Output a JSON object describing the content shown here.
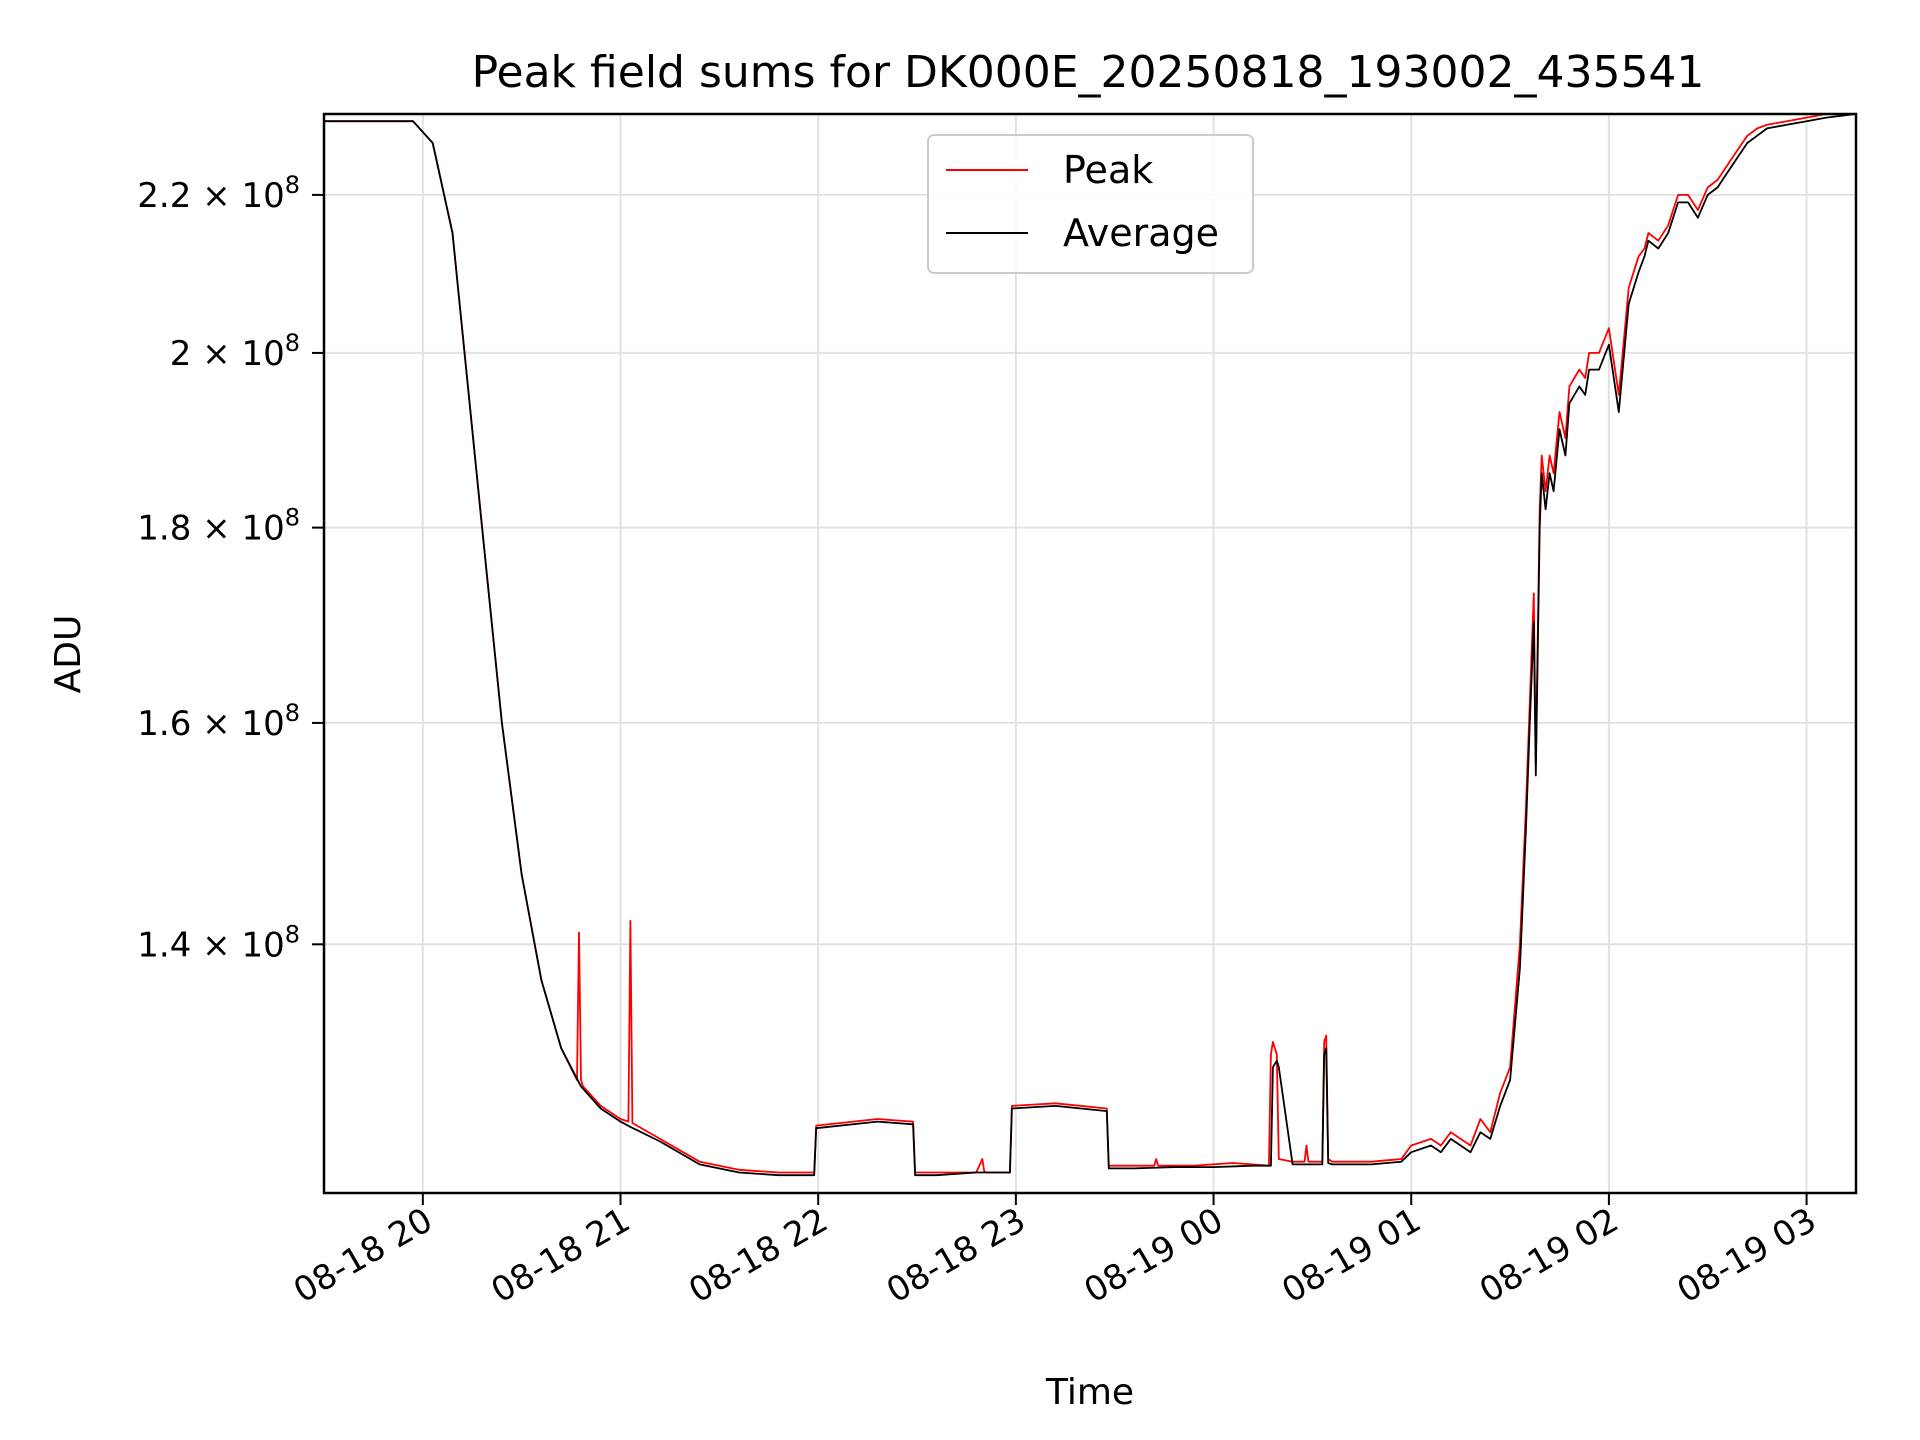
{
  "chart_data": {
    "type": "line",
    "title": "Peak field sums for DK000E_20250818_193002_435541",
    "xlabel": "Time",
    "ylabel": "ADU",
    "x_unit": "hours after 08-18 00:00",
    "xlim": [
      19.5,
      27.25
    ],
    "ylim": [
      120500000.0,
      231000000.0
    ],
    "yscale": "log",
    "grid": true,
    "legend_position": "top-center",
    "x_ticks": [
      {
        "value": 20,
        "label": "08-18 20"
      },
      {
        "value": 21,
        "label": "08-18 21"
      },
      {
        "value": 22,
        "label": "08-18 22"
      },
      {
        "value": 23,
        "label": "08-18 23"
      },
      {
        "value": 24,
        "label": "08-19 00"
      },
      {
        "value": 25,
        "label": "08-19 01"
      },
      {
        "value": 26,
        "label": "08-19 02"
      },
      {
        "value": 27,
        "label": "08-19 03"
      }
    ],
    "y_ticks": [
      {
        "value": 140000000.0,
        "label": "1.4 × 10",
        "exp": "8"
      },
      {
        "value": 160000000.0,
        "label": "1.6 × 10",
        "exp": "8"
      },
      {
        "value": 180000000.0,
        "label": "1.8 × 10",
        "exp": "8"
      },
      {
        "value": 200000000.0,
        "label": "2 × 10",
        "exp": "8"
      },
      {
        "value": 220000000.0,
        "label": "2.2 × 10",
        "exp": "8"
      }
    ],
    "series": [
      {
        "name": "Peak",
        "color": "#ff0000",
        "x": [
          19.5,
          19.8,
          19.95,
          20.05,
          20.15,
          20.3,
          20.4,
          20.5,
          20.6,
          20.7,
          20.78,
          20.79,
          20.8,
          20.81,
          20.9,
          21.0,
          21.04,
          21.05,
          21.06,
          21.2,
          21.4,
          21.6,
          21.8,
          21.98,
          21.99,
          22.3,
          22.48,
          22.49,
          22.6,
          22.8,
          22.83,
          22.84,
          22.85,
          22.97,
          22.98,
          23.2,
          23.46,
          23.47,
          23.6,
          23.7,
          23.71,
          23.72,
          23.9,
          24.1,
          24.28,
          24.29,
          24.3,
          24.32,
          24.33,
          24.4,
          24.46,
          24.47,
          24.48,
          24.55,
          24.56,
          24.57,
          24.58,
          24.6,
          24.8,
          24.95,
          25.0,
          25.1,
          25.15,
          25.2,
          25.3,
          25.35,
          25.4,
          25.45,
          25.5,
          25.55,
          25.58,
          25.6,
          25.62,
          25.63,
          25.65,
          25.66,
          25.68,
          25.7,
          25.72,
          25.75,
          25.78,
          25.8,
          25.85,
          25.88,
          25.9,
          25.95,
          26.0,
          26.05,
          26.1,
          26.15,
          26.18,
          26.2,
          26.25,
          26.3,
          26.35,
          26.4,
          26.45,
          26.5,
          26.55,
          26.6,
          26.65,
          26.7,
          26.75,
          26.8,
          26.9,
          27.0,
          27.1,
          27.25
        ],
        "y": [
          230000000.0,
          230000000.0,
          230000000.0,
          227000000.0,
          215000000.0,
          180000000.0,
          160000000.0,
          146000000.0,
          137000000.0,
          131500000.0,
          129000000.0,
          141000000.0,
          129000000.0,
          128500000.0,
          127000000.0,
          126000000.0,
          125800000.0,
          142000000.0,
          125700000.0,
          124500000.0,
          122800000.0,
          122200000.0,
          122000000.0,
          122000000.0,
          125500000.0,
          126000000.0,
          125800000.0,
          122000000.0,
          122000000.0,
          122000000.0,
          123000000.0,
          122100000.0,
          122000000.0,
          122000000.0,
          127000000.0,
          127200000.0,
          126800000.0,
          122500000.0,
          122500000.0,
          122500000.0,
          123000000.0,
          122500000.0,
          122500000.0,
          122700000.0,
          122500000.0,
          131000000.0,
          132000000.0,
          131000000.0,
          123000000.0,
          122800000.0,
          122800000.0,
          124000000.0,
          122800000.0,
          122800000.0,
          132000000.0,
          132500000.0,
          123000000.0,
          122800000.0,
          122800000.0,
          123000000.0,
          124000000.0,
          124500000.0,
          124000000.0,
          125000000.0,
          124000000.0,
          126000000.0,
          125000000.0,
          128000000.0,
          130000000.0,
          140000000.0,
          152000000.0,
          162000000.0,
          173000000.0,
          156000000.0,
          182000000.0,
          188000000.0,
          184000000.0,
          188000000.0,
          186000000.0,
          193000000.0,
          190000000.0,
          196000000.0,
          198000000.0,
          197000000.0,
          200000000.0,
          200000000.0,
          203000000.0,
          195000000.0,
          208000000.0,
          212000000.0,
          213000000.0,
          215000000.0,
          214000000.0,
          216000000.0,
          220000000.0,
          220000000.0,
          218000000.0,
          221000000.0,
          222000000.0,
          224000000.0,
          226000000.0,
          228000000.0,
          229000000.0,
          229500000.0,
          230000000.0,
          230500000.0,
          231000000.0,
          231000000.0
        ]
      },
      {
        "name": "Average",
        "color": "#000000",
        "x": [
          19.5,
          19.8,
          19.95,
          20.05,
          20.15,
          20.3,
          20.4,
          20.5,
          20.6,
          20.7,
          20.8,
          20.9,
          21.0,
          21.05,
          21.2,
          21.4,
          21.6,
          21.8,
          21.98,
          21.99,
          22.3,
          22.48,
          22.49,
          22.6,
          22.8,
          22.97,
          22.98,
          23.2,
          23.46,
          23.47,
          23.6,
          23.8,
          24.0,
          24.2,
          24.29,
          24.3,
          24.32,
          24.33,
          24.4,
          24.55,
          24.56,
          24.57,
          24.58,
          24.6,
          24.8,
          24.95,
          25.0,
          25.1,
          25.15,
          25.2,
          25.3,
          25.35,
          25.4,
          25.45,
          25.5,
          25.55,
          25.58,
          25.6,
          25.62,
          25.63,
          25.65,
          25.66,
          25.68,
          25.7,
          25.72,
          25.75,
          25.78,
          25.8,
          25.85,
          25.88,
          25.9,
          25.95,
          26.0,
          26.05,
          26.1,
          26.15,
          26.18,
          26.2,
          26.25,
          26.3,
          26.35,
          26.4,
          26.45,
          26.5,
          26.55,
          26.6,
          26.65,
          26.7,
          26.75,
          26.8,
          26.9,
          27.0,
          27.1,
          27.25
        ],
        "y": [
          230000000.0,
          230000000.0,
          230000000.0,
          227000000.0,
          215000000.0,
          180000000.0,
          160000000.0,
          146000000.0,
          137000000.0,
          131500000.0,
          128500000.0,
          126800000.0,
          125800000.0,
          125400000.0,
          124300000.0,
          122600000.0,
          122000000.0,
          121800000.0,
          121800000.0,
          125300000.0,
          125800000.0,
          125600000.0,
          121800000.0,
          121800000.0,
          122000000.0,
          122000000.0,
          126800000.0,
          127000000.0,
          126600000.0,
          122300000.0,
          122300000.0,
          122400000.0,
          122400000.0,
          122500000.0,
          122500000.0,
          130000000.0,
          130500000.0,
          130000000.0,
          122600000.0,
          122600000.0,
          131000000.0,
          131500000.0,
          122700000.0,
          122600000.0,
          122600000.0,
          122800000.0,
          123500000.0,
          124000000.0,
          123500000.0,
          124500000.0,
          123500000.0,
          125000000.0,
          124500000.0,
          127000000.0,
          129000000.0,
          138000000.0,
          150000000.0,
          160000000.0,
          170000000.0,
          155000000.0,
          180000000.0,
          186000000.0,
          182000000.0,
          186000000.0,
          184000000.0,
          191000000.0,
          188000000.0,
          194000000.0,
          196000000.0,
          195000000.0,
          198000000.0,
          198000000.0,
          201000000.0,
          193000000.0,
          206000000.0,
          210000000.0,
          212000000.0,
          214000000.0,
          213000000.0,
          215000000.0,
          219000000.0,
          219000000.0,
          217000000.0,
          220000000.0,
          221000000.0,
          223000000.0,
          225000000.0,
          227000000.0,
          228000000.0,
          229000000.0,
          229500000.0,
          230000000.0,
          230500000.0,
          231000000.0
        ]
      }
    ]
  }
}
